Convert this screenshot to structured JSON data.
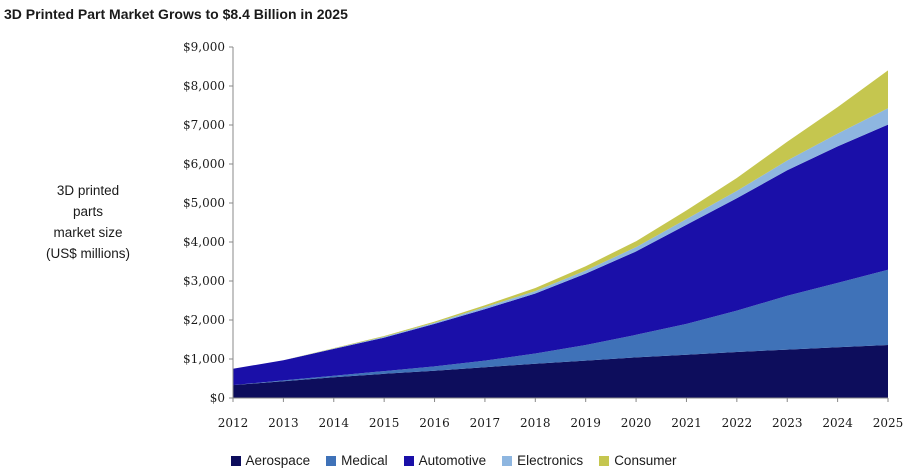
{
  "chart_data": {
    "type": "area",
    "stacked": true,
    "title": "3D Printed Part Market Grows to $8.4 Billion in 2025",
    "ylabel_lines": [
      "3D printed",
      "parts",
      "market size",
      "(US$ millions)"
    ],
    "xlabel": "",
    "x": [
      2012,
      2013,
      2014,
      2015,
      2016,
      2017,
      2018,
      2019,
      2020,
      2021,
      2022,
      2023,
      2024,
      2025
    ],
    "ylim": [
      0,
      9000
    ],
    "yticks": [
      0,
      1000,
      2000,
      3000,
      4000,
      5000,
      6000,
      7000,
      8000,
      9000
    ],
    "ytick_labels": [
      "$0",
      "$1,000",
      "$2,000",
      "$3,000",
      "$4,000",
      "$5,000",
      "$6,000",
      "$7,000",
      "$8,000",
      "$9,000"
    ],
    "series": [
      {
        "name": "Aerospace",
        "color": "#0d0d5c",
        "values": [
          330,
          430,
          530,
          620,
          700,
          790,
          880,
          960,
          1040,
          1110,
          1180,
          1240,
          1300,
          1360
        ]
      },
      {
        "name": "Medical",
        "color": "#3f72b8",
        "values": [
          0,
          20,
          40,
          70,
          110,
          170,
          260,
          400,
          580,
          790,
          1060,
          1380,
          1650,
          1930
        ]
      },
      {
        "name": "Automotive",
        "color": "#1a0fa8",
        "values": [
          420,
          520,
          690,
          860,
          1090,
          1320,
          1540,
          1830,
          2140,
          2540,
          2880,
          3220,
          3500,
          3720
        ]
      },
      {
        "name": "Electronics",
        "color": "#8eb6e0",
        "values": [
          0,
          0,
          10,
          20,
          30,
          50,
          60,
          80,
          110,
          150,
          190,
          250,
          330,
          420
        ]
      },
      {
        "name": "Consumer",
        "color": "#c5c64f",
        "values": [
          0,
          0,
          10,
          20,
          30,
          50,
          80,
          110,
          150,
          220,
          330,
          480,
          680,
          970
        ]
      }
    ],
    "legend_position": "bottom",
    "grid": false
  }
}
